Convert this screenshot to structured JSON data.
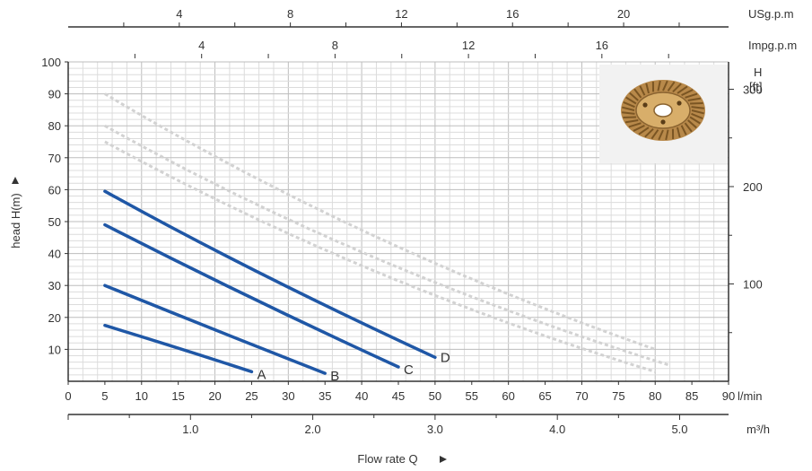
{
  "chart_data": {
    "type": "line",
    "xlabel": "Flow rate Q",
    "x_unit": "l/min",
    "ylabel": "head H(m)",
    "xlim": [
      0,
      90
    ],
    "ylim": [
      0,
      100
    ],
    "x_ticks": [
      "0",
      "5",
      "10",
      "15",
      "20",
      "25",
      "30",
      "35",
      "40",
      "45",
      "50",
      "55",
      "60",
      "65",
      "70",
      "75",
      "80",
      "85",
      "90"
    ],
    "y_ticks": [
      "10",
      "20",
      "30",
      "40",
      "50",
      "60",
      "70",
      "80",
      "90",
      "100"
    ],
    "grid": true,
    "secondary_axes": {
      "usgpm": {
        "unit": "USg.p.m",
        "ticks": [
          "4",
          "8",
          "12",
          "16",
          "20"
        ]
      },
      "impgpm": {
        "unit": "Impg.p.m",
        "ticks": [
          "4",
          "8",
          "12",
          "16"
        ]
      },
      "m3h": {
        "unit": "m³/h",
        "ticks": [
          "1.0",
          "2.0",
          "3.0",
          "4.0",
          "5.0"
        ]
      },
      "feet": {
        "unit_line1": "H",
        "unit_line2": "[ft]",
        "ticks": [
          "100",
          "200",
          "300"
        ]
      }
    },
    "series": [
      {
        "name": "A",
        "x": [
          5,
          15,
          25
        ],
        "y": [
          17.5,
          10.5,
          3
        ]
      },
      {
        "name": "B",
        "x": [
          5,
          20,
          35
        ],
        "y": [
          30,
          16,
          2.5
        ]
      },
      {
        "name": "C",
        "x": [
          5,
          25,
          45
        ],
        "y": [
          49,
          25.5,
          4.5
        ]
      },
      {
        "name": "D",
        "x": [
          5,
          25,
          50
        ],
        "y": [
          59.5,
          34,
          7.5
        ]
      }
    ],
    "faint_background_series": [
      {
        "x": [
          5,
          40,
          80
        ],
        "y": [
          90,
          42,
          10
        ]
      },
      {
        "x": [
          5,
          40,
          82
        ],
        "y": [
          80,
          35,
          5
        ]
      },
      {
        "x": [
          5,
          40,
          80
        ],
        "y": [
          75,
          31,
          3
        ]
      }
    ],
    "colors": {
      "curve": "#1f57a6",
      "grid": "#c9c9c9",
      "faint": "#d2d2d2",
      "axis": "#333333"
    }
  },
  "product_image": {
    "icon": "impeller-icon"
  }
}
